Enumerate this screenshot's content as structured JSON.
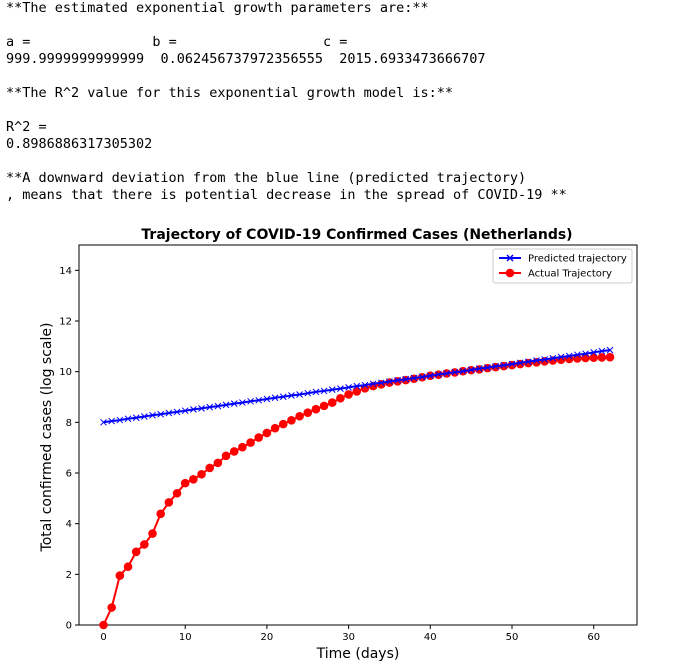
{
  "output": {
    "params_header": "**The estimated exponential growth parameters are:**",
    "a_label": "a =",
    "b_label": "b =",
    "c_label": "c =",
    "a_value": "999.9999999999999",
    "b_value": "0.062456737972356555",
    "c_value": "2015.6933473666707",
    "r2_header": "**The R^2 value for this exponential growth model is:**",
    "r2_label": "R^2 =",
    "r2_value": "0.8986886317305302",
    "note_line1": "**A downward deviation from the blue line (predicted trajectory)",
    "note_line2": ", means that there is potential decrease in the spread of COVID-19 **"
  },
  "chart_data": {
    "type": "line",
    "title": "Trajectory of COVID-19 Confirmed Cases (Netherlands)",
    "xlabel": "Time (days)",
    "ylabel": "Total confirmed cases (log scale)",
    "xlim": [
      -3,
      65.3
    ],
    "ylim": [
      0,
      15
    ],
    "xticks": [
      0,
      10,
      20,
      30,
      40,
      50,
      60
    ],
    "yticks": [
      0,
      2,
      4,
      6,
      8,
      10,
      12,
      14
    ],
    "grid": false,
    "legend_position": "top-right",
    "series": [
      {
        "name": "Predicted trajectory",
        "color": "#0000ff",
        "marker": "x",
        "x": [
          0,
          1,
          2,
          3,
          4,
          5,
          6,
          7,
          8,
          9,
          10,
          11,
          12,
          13,
          14,
          15,
          16,
          17,
          18,
          19,
          20,
          21,
          22,
          23,
          24,
          25,
          26,
          27,
          28,
          29,
          30,
          31,
          32,
          33,
          34,
          35,
          36,
          37,
          38,
          39,
          40,
          41,
          42,
          43,
          44,
          45,
          46,
          47,
          48,
          49,
          50,
          51,
          52,
          53,
          54,
          55,
          56,
          57,
          58,
          59,
          60,
          61,
          62
        ],
        "values": [
          8.0,
          8.05,
          8.09,
          8.14,
          8.18,
          8.23,
          8.28,
          8.32,
          8.37,
          8.41,
          8.46,
          8.51,
          8.55,
          8.6,
          8.64,
          8.69,
          8.74,
          8.78,
          8.83,
          8.87,
          8.92,
          8.97,
          9.01,
          9.06,
          9.1,
          9.15,
          9.2,
          9.24,
          9.29,
          9.33,
          9.38,
          9.43,
          9.47,
          9.52,
          9.56,
          9.61,
          9.66,
          9.7,
          9.75,
          9.79,
          9.84,
          9.89,
          9.93,
          9.98,
          10.02,
          10.07,
          10.12,
          10.16,
          10.21,
          10.25,
          10.3,
          10.35,
          10.39,
          10.44,
          10.48,
          10.53,
          10.58,
          10.62,
          10.67,
          10.71,
          10.76,
          10.81,
          10.85
        ]
      },
      {
        "name": "Actual Trajectory",
        "color": "#ff0000",
        "marker": "o",
        "x": [
          0,
          1,
          2,
          3,
          4,
          5,
          6,
          7,
          8,
          9,
          10,
          11,
          12,
          13,
          14,
          15,
          16,
          17,
          18,
          19,
          20,
          21,
          22,
          23,
          24,
          25,
          26,
          27,
          28,
          29,
          30,
          31,
          32,
          33,
          34,
          35,
          36,
          37,
          38,
          39,
          40,
          41,
          42,
          43,
          44,
          45,
          46,
          47,
          48,
          49,
          50,
          51,
          52,
          53,
          54,
          55,
          56,
          57,
          58,
          59,
          60,
          61,
          62
        ],
        "values": [
          0.0,
          0.69,
          1.95,
          2.3,
          2.89,
          3.18,
          3.61,
          4.39,
          4.84,
          5.2,
          5.6,
          5.75,
          5.95,
          6.2,
          6.4,
          6.68,
          6.85,
          7.02,
          7.2,
          7.4,
          7.58,
          7.77,
          7.93,
          8.08,
          8.24,
          8.38,
          8.52,
          8.65,
          8.78,
          8.95,
          9.1,
          9.22,
          9.34,
          9.43,
          9.5,
          9.57,
          9.62,
          9.67,
          9.72,
          9.78,
          9.84,
          9.88,
          9.93,
          9.97,
          10.02,
          10.06,
          10.09,
          10.14,
          10.18,
          10.22,
          10.26,
          10.3,
          10.34,
          10.37,
          10.41,
          10.44,
          10.47,
          10.5,
          10.52,
          10.54,
          10.55,
          10.56,
          10.57
        ]
      }
    ]
  }
}
